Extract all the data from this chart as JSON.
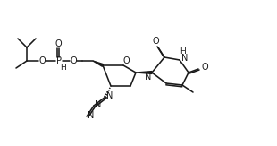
{
  "bg": "#ffffff",
  "lc": "#1a1a1a",
  "lw": 1.15,
  "fs": 6.5,
  "figsize": [
    3.1,
    1.63
  ],
  "dpi": 100,
  "xlim": [
    0,
    310
  ],
  "ylim": [
    0,
    163
  ]
}
